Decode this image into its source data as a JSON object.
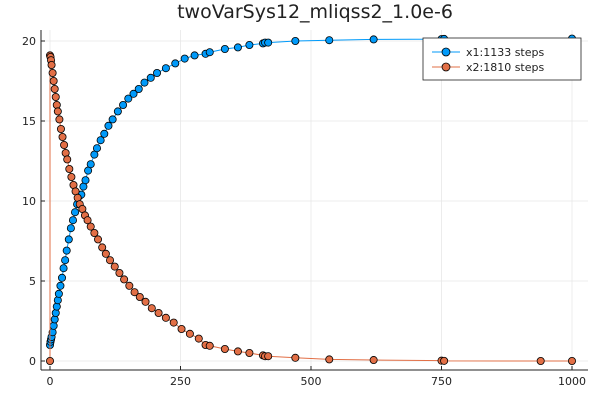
{
  "chart_data": {
    "type": "scatter",
    "title": "twoVarSys12_mliqss2_1.0e-6",
    "xlabel": "",
    "ylabel": "",
    "xlim": [
      0,
      1000
    ],
    "ylim": [
      0,
      20
    ],
    "x_ticks": [
      0,
      250,
      500,
      750,
      1000
    ],
    "y_ticks": [
      0,
      5,
      10,
      15,
      20
    ],
    "grid": true,
    "legend_position": "top-right",
    "series": [
      {
        "name": "x1:1133 steps",
        "color": "#009AFA",
        "line": true,
        "marker": "circle",
        "points": [
          [
            0,
            1.0
          ],
          [
            1,
            1.2
          ],
          [
            2,
            1.35
          ],
          [
            3,
            1.5
          ],
          [
            5,
            1.8
          ],
          [
            7,
            2.2
          ],
          [
            9,
            2.6
          ],
          [
            11,
            3.0
          ],
          [
            13,
            3.4
          ],
          [
            15,
            3.8
          ],
          [
            17,
            4.2
          ],
          [
            20,
            4.7
          ],
          [
            23,
            5.2
          ],
          [
            26,
            5.8
          ],
          [
            29,
            6.3
          ],
          [
            32,
            6.9
          ],
          [
            36,
            7.6
          ],
          [
            40,
            8.3
          ],
          [
            44,
            8.8
          ],
          [
            48,
            9.3
          ],
          [
            52,
            9.8
          ],
          [
            56,
            10.3
          ],
          [
            60,
            10.4
          ],
          [
            64,
            10.9
          ],
          [
            68,
            11.3
          ],
          [
            73,
            11.9
          ],
          [
            78,
            12.3
          ],
          [
            85,
            12.9
          ],
          [
            90,
            13.3
          ],
          [
            97,
            13.8
          ],
          [
            104,
            14.2
          ],
          [
            112,
            14.7
          ],
          [
            120,
            15.1
          ],
          [
            130,
            15.6
          ],
          [
            140,
            16.0
          ],
          [
            150,
            16.4
          ],
          [
            160,
            16.7
          ],
          [
            170,
            17.0
          ],
          [
            181,
            17.4
          ],
          [
            193,
            17.7
          ],
          [
            205,
            18.0
          ],
          [
            222,
            18.3
          ],
          [
            240,
            18.6
          ],
          [
            258,
            18.9
          ],
          [
            277,
            19.1
          ],
          [
            298,
            19.2
          ],
          [
            306,
            19.3
          ],
          [
            335,
            19.5
          ],
          [
            360,
            19.6
          ],
          [
            382,
            19.75
          ],
          [
            408,
            19.85
          ],
          [
            412,
            19.9
          ],
          [
            418,
            19.9
          ],
          [
            470,
            20.0
          ],
          [
            535,
            20.05
          ],
          [
            620,
            20.1
          ],
          [
            750,
            20.12
          ],
          [
            755,
            20.13
          ],
          [
            1000,
            20.15
          ]
        ]
      },
      {
        "name": "x2:1810 steps",
        "color": "#E26F46",
        "line": true,
        "marker": "circle",
        "points": [
          [
            0,
            0.0
          ],
          [
            0,
            19.1
          ],
          [
            1,
            19.0
          ],
          [
            2,
            18.8
          ],
          [
            3,
            18.5
          ],
          [
            5,
            18.0
          ],
          [
            7,
            17.5
          ],
          [
            9,
            17.0
          ],
          [
            11,
            16.5
          ],
          [
            13,
            16.0
          ],
          [
            15,
            15.6
          ],
          [
            18,
            15.1
          ],
          [
            21,
            14.5
          ],
          [
            24,
            14.0
          ],
          [
            27,
            13.5
          ],
          [
            30,
            13.0
          ],
          [
            33,
            12.6
          ],
          [
            37,
            12.0
          ],
          [
            41,
            11.5
          ],
          [
            45,
            11.0
          ],
          [
            49,
            10.6
          ],
          [
            53,
            10.2
          ],
          [
            57,
            9.8
          ],
          [
            62,
            9.5
          ],
          [
            67,
            9.1
          ],
          [
            72,
            8.8
          ],
          [
            78,
            8.4
          ],
          [
            85,
            8.0
          ],
          [
            92,
            7.6
          ],
          [
            100,
            7.1
          ],
          [
            107,
            6.7
          ],
          [
            115,
            6.3
          ],
          [
            124,
            5.9
          ],
          [
            133,
            5.5
          ],
          [
            142,
            5.1
          ],
          [
            152,
            4.7
          ],
          [
            162,
            4.3
          ],
          [
            172,
            4.0
          ],
          [
            183,
            3.7
          ],
          [
            195,
            3.3
          ],
          [
            208,
            3.0
          ],
          [
            222,
            2.7
          ],
          [
            237,
            2.4
          ],
          [
            252,
            2.0
          ],
          [
            268,
            1.7
          ],
          [
            285,
            1.4
          ],
          [
            298,
            1.0
          ],
          [
            306,
            0.95
          ],
          [
            335,
            0.75
          ],
          [
            360,
            0.6
          ],
          [
            382,
            0.5
          ],
          [
            408,
            0.35
          ],
          [
            412,
            0.3
          ],
          [
            418,
            0.3
          ],
          [
            470,
            0.2
          ],
          [
            535,
            0.1
          ],
          [
            620,
            0.06
          ],
          [
            750,
            0.02
          ],
          [
            755,
            0.01
          ],
          [
            940,
            0.0
          ],
          [
            1000,
            0.0
          ]
        ]
      }
    ]
  }
}
